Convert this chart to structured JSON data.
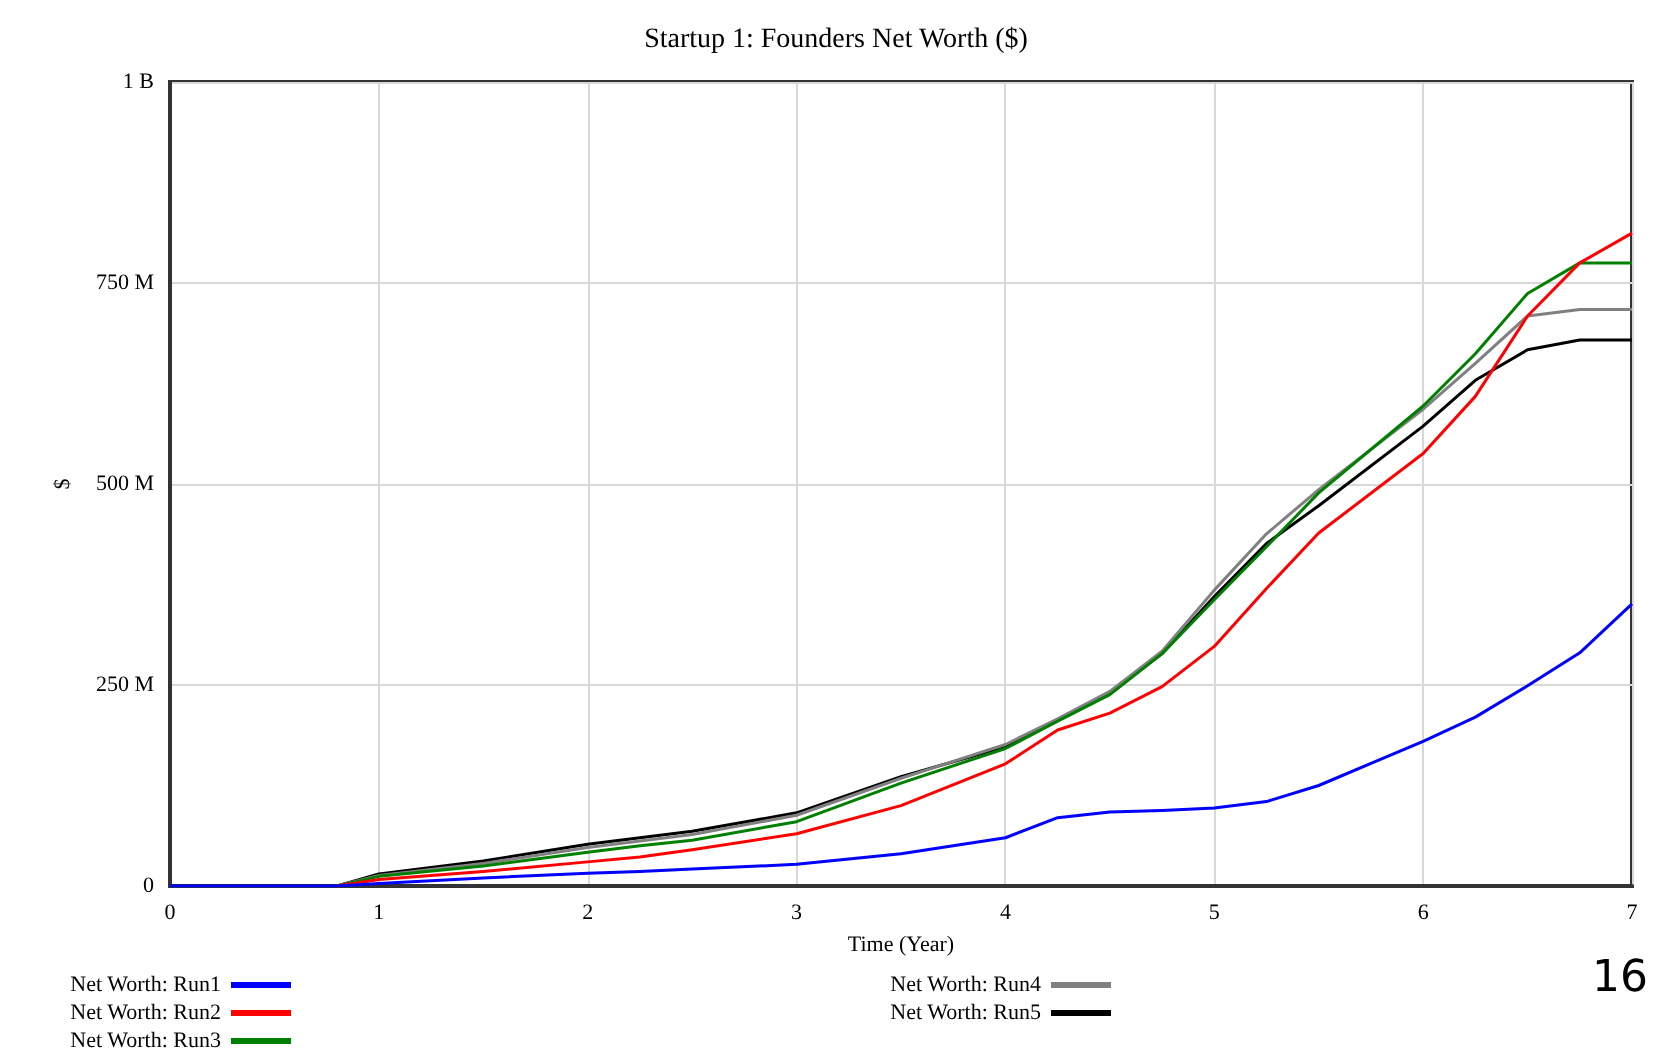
{
  "chart_data": {
    "type": "line",
    "title": "Startup 1: Founders Net Worth ($)",
    "xlabel": "Time (Year)",
    "ylabel": "$",
    "x": [
      0,
      0.5,
      0.8,
      1,
      1.5,
      2,
      2.25,
      2.5,
      3,
      3.5,
      4,
      4.25,
      4.5,
      4.75,
      5,
      5.25,
      5.5,
      6,
      6.25,
      6.5,
      6.75,
      7
    ],
    "series": [
      {
        "name": "Net Worth: Run1",
        "color": "#0000ff",
        "values": [
          0,
          0,
          0,
          3000000,
          10000000,
          16000000,
          18000000,
          21000000,
          27000000,
          40000000,
          60000000,
          85000000,
          92000000,
          94000000,
          97000000,
          105000000,
          125000000,
          180000000,
          210000000,
          249000000,
          290000000,
          351000000
        ]
      },
      {
        "name": "Net Worth: Run2",
        "color": "#ff0000",
        "values": [
          null,
          null,
          0,
          8000000,
          18000000,
          30000000,
          36000000,
          45000000,
          65000000,
          100000000,
          152000000,
          194000000,
          215000000,
          248000000,
          298000000,
          370000000,
          439000000,
          538000000,
          609000000,
          709000000,
          775000000,
          812000000
        ]
      },
      {
        "name": "Net Worth: Run3",
        "color": "#008000",
        "values": [
          null,
          null,
          0,
          12000000,
          25000000,
          42000000,
          50000000,
          57000000,
          80000000,
          128000000,
          171000000,
          205000000,
          238000000,
          289000000,
          356000000,
          422000000,
          489000000,
          597000000,
          662000000,
          737000000,
          775000000,
          775000000
        ]
      },
      {
        "name": "Net Worth: Run4",
        "color": "#808080",
        "values": [
          null,
          null,
          0,
          13000000,
          28000000,
          48000000,
          56000000,
          64000000,
          88000000,
          134000000,
          176000000,
          208000000,
          242000000,
          292000000,
          368000000,
          438000000,
          493000000,
          593000000,
          650000000,
          709000000,
          717000000,
          717000000
        ]
      },
      {
        "name": "Net Worth: Run5",
        "color": "#000000",
        "values": [
          null,
          null,
          0,
          15000000,
          31000000,
          52000000,
          60000000,
          68000000,
          91000000,
          136000000,
          173000000,
          206000000,
          240000000,
          289000000,
          360000000,
          426000000,
          473000000,
          572000000,
          629000000,
          667000000,
          679000000,
          679000000
        ]
      }
    ],
    "xlim": [
      0,
      7
    ],
    "xticks": [
      0,
      1,
      2,
      3,
      4,
      5,
      6,
      7
    ],
    "ylim": [
      0,
      1000000000
    ],
    "yticks": [
      {
        "value": 0,
        "label": "0"
      },
      {
        "value": 250000000,
        "label": "250 M"
      },
      {
        "value": 500000000,
        "label": "500 M"
      },
      {
        "value": 750000000,
        "label": "750 M"
      },
      {
        "value": 1000000000,
        "label": "1 B"
      }
    ],
    "grid": true,
    "legend": "bottom",
    "marker": "none",
    "line_style": "solid",
    "annotations": [
      "16"
    ]
  }
}
